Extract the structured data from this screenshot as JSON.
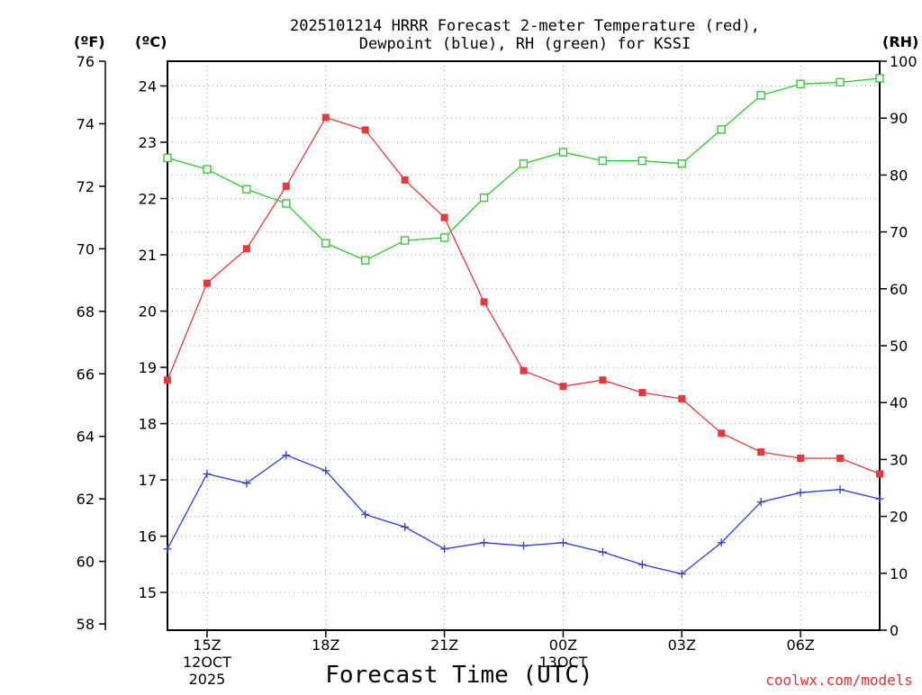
{
  "chart_data": {
    "type": "line",
    "title": [
      "2025101214 HRRR Forecast 2-meter Temperature (red),",
      "Dewpoint (blue), RH (green) for KSSI"
    ],
    "xlabel": "Forecast Time (UTC)",
    "watermark": "coolwx.com/models",
    "units": {
      "fahrenheit": "(ºF)",
      "celsius": "(ºC)",
      "rh": "(RH)"
    },
    "x": [
      "14Z",
      "15Z",
      "16Z",
      "17Z",
      "18Z",
      "19Z",
      "20Z",
      "21Z",
      "22Z",
      "23Z",
      "00Z",
      "01Z",
      "02Z",
      "03Z",
      "04Z",
      "05Z",
      "06Z",
      "07Z",
      "08Z"
    ],
    "x_tick_labels": [
      {
        "hour": "15Z",
        "lines": [
          "15Z",
          "12OCT",
          "2025"
        ]
      },
      {
        "hour": "18Z",
        "lines": [
          "18Z"
        ]
      },
      {
        "hour": "21Z",
        "lines": [
          "21Z"
        ]
      },
      {
        "hour": "00Z",
        "lines": [
          "00Z",
          "13OCT"
        ]
      },
      {
        "hour": "03Z",
        "lines": [
          "03Z"
        ]
      },
      {
        "hour": "06Z",
        "lines": [
          "06Z"
        ]
      }
    ],
    "fahrenheit_axis": {
      "ylim": [
        57.8,
        76
      ],
      "ticks": [
        "58",
        "60",
        "62",
        "64",
        "66",
        "68",
        "70",
        "72",
        "74",
        "76"
      ]
    },
    "celsius_axis": {
      "ylim": [
        14.33,
        24.44
      ],
      "ticks": [
        "15",
        "16",
        "17",
        "18",
        "19",
        "20",
        "21",
        "22",
        "23",
        "24"
      ]
    },
    "rh_axis": {
      "ylim": [
        0,
        100
      ],
      "ticks": [
        "0",
        "10",
        "20",
        "30",
        "40",
        "50",
        "60",
        "70",
        "80",
        "90",
        "100"
      ]
    },
    "series": [
      {
        "name": "Temperature",
        "axis": "fahrenheit",
        "color": "#e8383a",
        "marker": "filled-square",
        "values": [
          65.8,
          68.9,
          70.0,
          72.0,
          74.2,
          73.8,
          72.2,
          71.0,
          68.3,
          66.1,
          65.6,
          65.8,
          65.4,
          65.2,
          64.1,
          63.5,
          63.3,
          63.3,
          62.8
        ]
      },
      {
        "name": "Dewpoint",
        "axis": "fahrenheit",
        "color": "#2a3ee6",
        "marker": "plus",
        "values": [
          60.4,
          62.8,
          62.5,
          63.4,
          62.9,
          61.5,
          61.1,
          60.4,
          60.6,
          60.5,
          60.6,
          60.3,
          59.9,
          59.6,
          60.6,
          61.9,
          62.2,
          62.3,
          62.0
        ]
      },
      {
        "name": "Relative Humidity",
        "axis": "rh",
        "color": "#22cc22",
        "marker": "open-square",
        "values": [
          83,
          81,
          77.5,
          75,
          68,
          65,
          68.5,
          69,
          76,
          82,
          84,
          82.5,
          82.5,
          82,
          88,
          94,
          96,
          96.3,
          97
        ]
      }
    ]
  }
}
